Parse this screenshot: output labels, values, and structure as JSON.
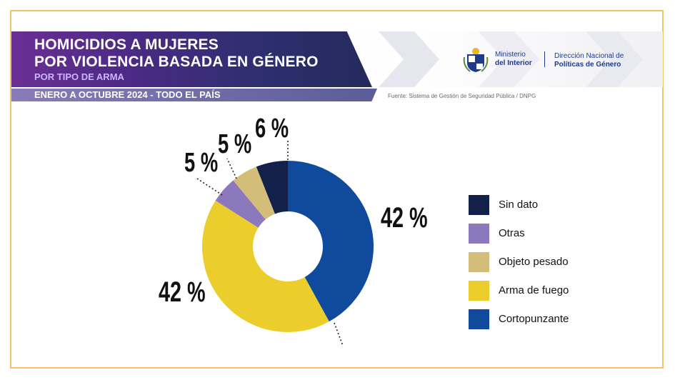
{
  "header": {
    "title_line1": "HOMICIDIOS A MUJERES",
    "title_line2": "POR VIOLENCIA BASADA EN GÉNERO",
    "subtitle": "POR TIPO DE ARMA",
    "date_range": "ENERO A OCTUBRE 2024 - TODO EL PAÍS",
    "source": "Fuente: Sistema de Gestión de Seguridad Pública / DNPG"
  },
  "logos": {
    "ministry_line1": "Ministerio",
    "ministry_line2": "del Interior",
    "direction_line1": "Dirección Nacional de",
    "direction_line2": "Políticas de Género",
    "emblem_icon": "uruguay-coat-of-arms-icon"
  },
  "colors": {
    "sin_dato": "#13204a",
    "otras": "#8c78bc",
    "objeto_pesado": "#d4bd78",
    "arma_de_fuego": "#ebcd2c",
    "cortopunzante": "#104a9c",
    "frame": "#f0c26a"
  },
  "chart_data": {
    "type": "pie",
    "variant": "donut",
    "categories": [
      "Cortopunzante",
      "Arma de fuego",
      "Otras",
      "Objeto pesado",
      "Sin dato"
    ],
    "values": [
      42,
      42,
      5,
      5,
      6
    ],
    "labels": [
      "42 %",
      "42 %",
      "5 %",
      "5 %",
      "6 %"
    ],
    "unit": "%",
    "colors": [
      "#104a9c",
      "#ebcd2c",
      "#8c78bc",
      "#d4bd78",
      "#13204a"
    ],
    "legend": {
      "position": "right",
      "entries": [
        "Sin dato",
        "Otras",
        "Objeto pesado",
        "Arma de fuego",
        "Cortopunzante"
      ],
      "colors": [
        "#13204a",
        "#8c78bc",
        "#d4bd78",
        "#ebcd2c",
        "#104a9c"
      ]
    }
  }
}
